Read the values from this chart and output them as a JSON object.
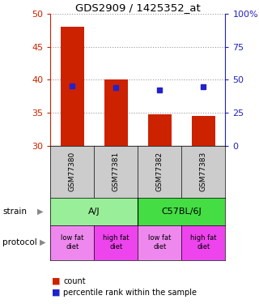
{
  "title": "GDS2909 / 1425352_at",
  "samples": [
    "GSM77380",
    "GSM77381",
    "GSM77382",
    "GSM77383"
  ],
  "bar_values": [
    48.0,
    40.0,
    34.8,
    34.5
  ],
  "bar_bottom": 30,
  "blue_values": [
    39.1,
    38.8,
    38.5,
    39.0
  ],
  "ylim": [
    30,
    50
  ],
  "right_ylim": [
    0,
    100
  ],
  "right_yticks": [
    0,
    25,
    50,
    75,
    100
  ],
  "right_yticklabels": [
    "0",
    "25",
    "50",
    "75",
    "100%"
  ],
  "left_yticks": [
    30,
    35,
    40,
    45,
    50
  ],
  "bar_color": "#cc2200",
  "blue_color": "#2222cc",
  "strain_labels": [
    "A/J",
    "C57BL/6J"
  ],
  "strain_color_AJ": "#99ee99",
  "strain_color_C57": "#44dd44",
  "protocol_labels": [
    "low fat\ndiet",
    "high fat\ndiet",
    "low fat\ndiet",
    "high fat\ndiet"
  ],
  "protocol_color_low": "#ee88ee",
  "protocol_color_high": "#ee44ee",
  "sample_bg_color": "#cccccc",
  "left_tick_color": "#cc2200",
  "right_tick_color": "#2222bb"
}
